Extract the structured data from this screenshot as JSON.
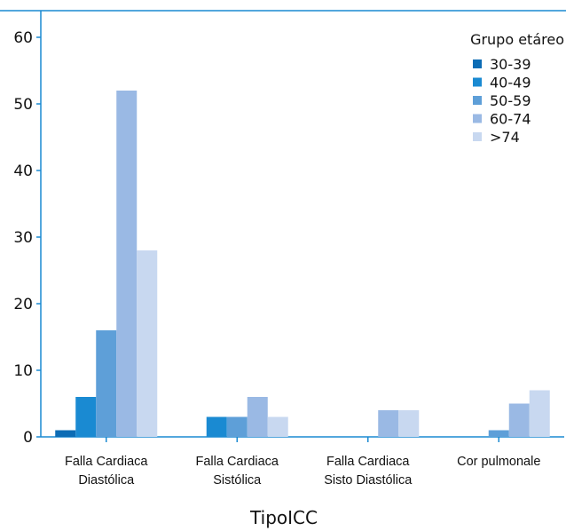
{
  "chart_data": {
    "type": "bar",
    "categories": [
      [
        "Falla Cardiaca",
        "Diastólica"
      ],
      [
        "Falla Cardiaca",
        "Sistólica"
      ],
      [
        "Falla Cardiaca",
        "Sisto Diastólica"
      ],
      [
        "Cor pulmonale"
      ]
    ],
    "series": [
      {
        "name": "30-39",
        "color": "#0c6cb5",
        "values": [
          1,
          0,
          0,
          0
        ]
      },
      {
        "name": "40-49",
        "color": "#1a8ad2",
        "values": [
          6,
          3,
          0,
          0
        ]
      },
      {
        "name": "50-59",
        "color": "#5e9fd8",
        "values": [
          16,
          3,
          0,
          1
        ]
      },
      {
        "name": "60-74",
        "color": "#9ab9e4",
        "values": [
          52,
          6,
          4,
          5
        ]
      },
      {
        "name": ">74",
        "color": "#c8d8f0",
        "values": [
          28,
          3,
          4,
          7
        ]
      }
    ],
    "xlabel": "TipoICC",
    "ylabel": "",
    "ylim": [
      0,
      64
    ],
    "yticks": [
      0,
      10,
      20,
      30,
      40,
      50,
      60
    ],
    "legend_title": "Grupo etáreo",
    "legend_position": "top-right",
    "axis_color": "#1a8ad2",
    "grid": false
  }
}
